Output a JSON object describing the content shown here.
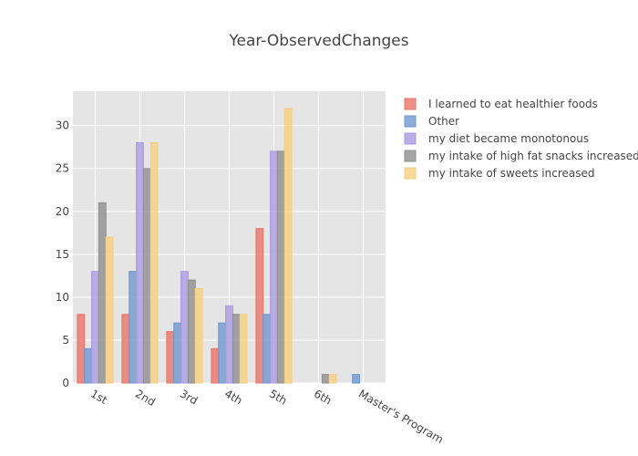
{
  "chart_data": {
    "type": "bar",
    "title": "Year-ObservedChanges",
    "xlabel": "",
    "ylabel": "",
    "categories": [
      "1st",
      "2nd",
      "3rd",
      "4th",
      "5th",
      "6th",
      "Master's Program"
    ],
    "ylim": [
      0,
      34
    ],
    "yticks": [
      0,
      5,
      10,
      15,
      20,
      25,
      30
    ],
    "grid": true,
    "legend_position": "right",
    "series": [
      {
        "name": "I learned to eat healthier foods",
        "color": "#e8746a",
        "values": [
          8,
          8,
          6,
          4,
          18,
          0,
          0
        ]
      },
      {
        "name": "Other",
        "color": "#6f97cf",
        "values": [
          4,
          13,
          7,
          7,
          8,
          0,
          1
        ]
      },
      {
        "name": "my diet became monotonous",
        "color": "#a99be0",
        "values": [
          13,
          28,
          13,
          9,
          27,
          0,
          0
        ]
      },
      {
        "name": "my intake of high fat snacks increased",
        "color": "#8f8f8f",
        "values": [
          21,
          25,
          12,
          8,
          27,
          1,
          0
        ]
      },
      {
        "name": "my intake of sweets increased",
        "color": "#f7cf7f",
        "values": [
          17,
          28,
          11,
          8,
          32,
          1,
          0
        ]
      }
    ]
  }
}
